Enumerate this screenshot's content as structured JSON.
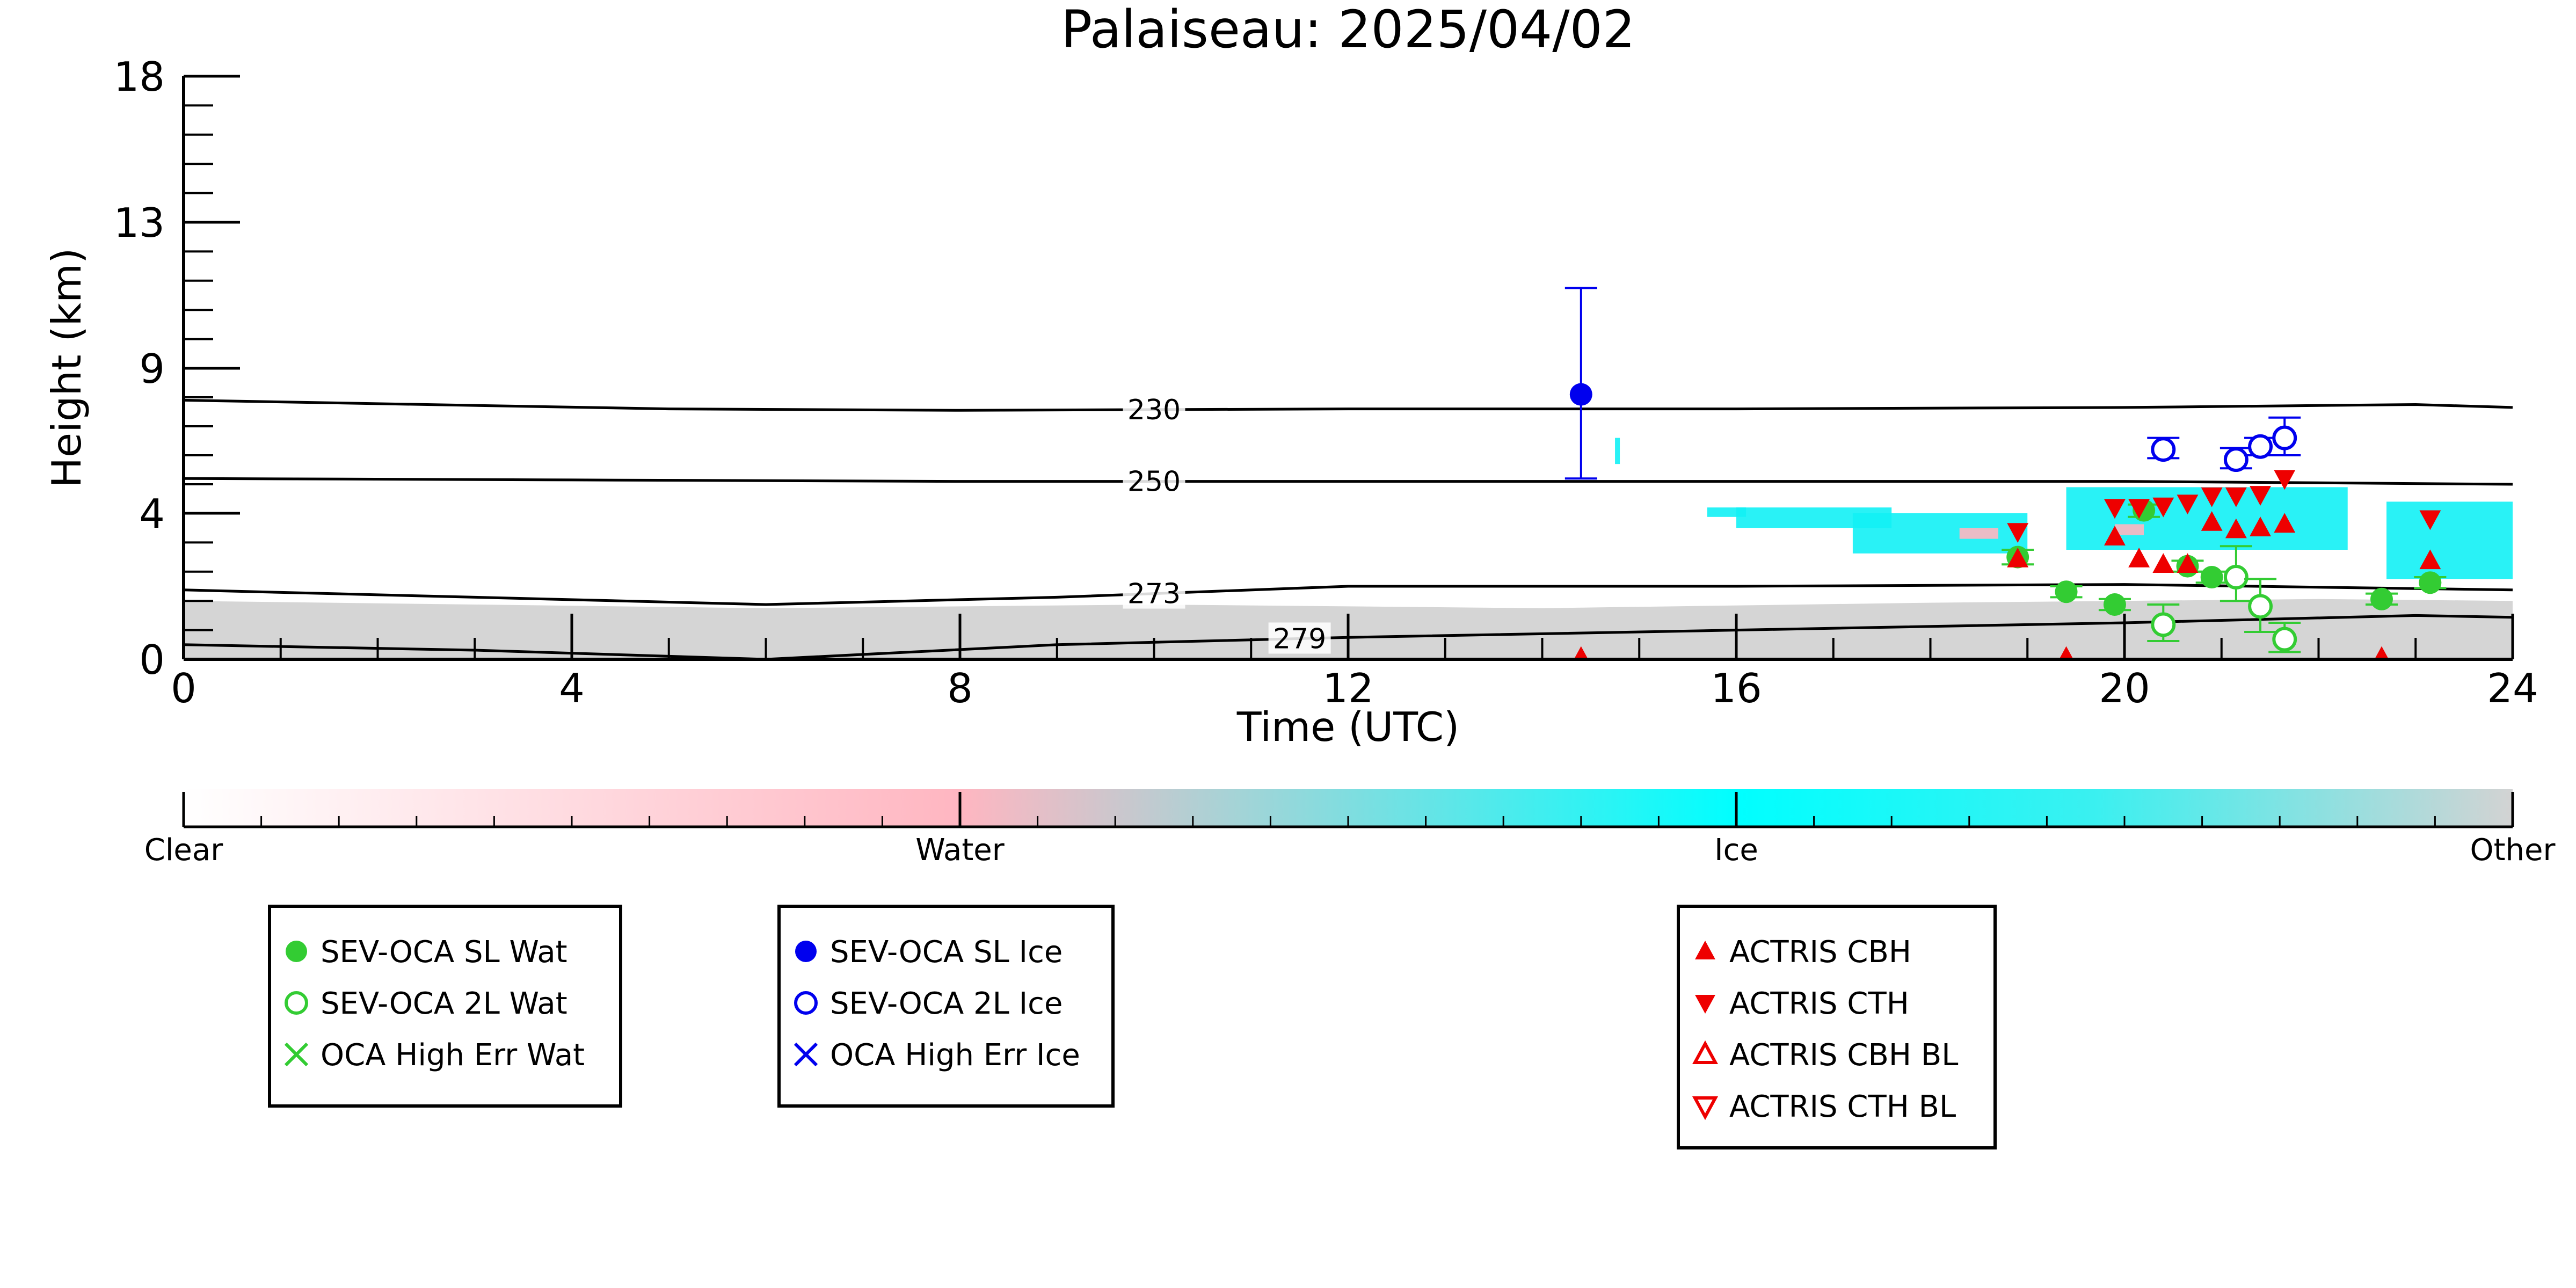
{
  "chart_data": {
    "type": "scatter",
    "title": "Palaiseau: 2025/04/02",
    "xlabel": "Time (UTC)",
    "ylabel": "Height (km)",
    "xlim": [
      0,
      24
    ],
    "ylim": [
      0,
      18
    ],
    "x_ticks": [
      0,
      4,
      8,
      12,
      16,
      20,
      24
    ],
    "x_tick_labels": [
      "0",
      "4",
      "8",
      "12",
      "16",
      "20",
      "24"
    ],
    "y_ticks": [
      0,
      4,
      9,
      13,
      18
    ],
    "y_tick_labels": [
      "0",
      "4",
      "9",
      "13",
      "18"
    ],
    "y_scale": "nonlinear (labelled ticks at 0, 4, 9, 13, 18 km)",
    "grid": false,
    "temperature_contours": [
      {
        "label": "230",
        "x": [
          0,
          5,
          8,
          12,
          16,
          20,
          23,
          24
        ],
        "y": [
          7.9,
          7.6,
          7.55,
          7.6,
          7.6,
          7.65,
          7.75,
          7.65
        ]
      },
      {
        "label": "250",
        "x": [
          0,
          4,
          8,
          12,
          16,
          20,
          24
        ],
        "y": [
          5.2,
          5.15,
          5.1,
          5.1,
          5.1,
          5.1,
          5.0
        ]
      },
      {
        "label": "273",
        "x": [
          0,
          3,
          6,
          9,
          12,
          16,
          20,
          24
        ],
        "y": [
          1.9,
          1.7,
          1.5,
          1.7,
          2.0,
          2.0,
          2.05,
          1.9
        ]
      },
      {
        "label": "279",
        "x": [
          0,
          3,
          6,
          9,
          12,
          16,
          20,
          23,
          24
        ],
        "y": [
          0.4,
          0.25,
          0.0,
          0.4,
          0.6,
          0.8,
          1.0,
          1.2,
          1.15
        ]
      }
    ],
    "background_layers": [
      {
        "category": "Other",
        "color": "#d3d3d3",
        "x": [
          0,
          3,
          6,
          10,
          14,
          18,
          22,
          24
        ],
        "top": [
          1.6,
          1.5,
          1.4,
          1.5,
          1.4,
          1.55,
          1.65,
          1.6
        ]
      },
      {
        "category": "Ice",
        "color": "#12f1f5",
        "patches": [
          {
            "x": [
              15.7,
              16.1
            ],
            "y": [
              3.9,
              4.2
            ]
          },
          {
            "x": [
              16.0,
              17.6
            ],
            "y": [
              3.6,
              4.2
            ]
          },
          {
            "x": [
              17.2,
              19.0
            ],
            "y": [
              2.9,
              4.0
            ]
          },
          {
            "x": [
              19.4,
              22.3
            ],
            "y": [
              3.0,
              4.9
            ]
          },
          {
            "x": [
              22.7,
              24.0
            ],
            "y": [
              2.2,
              4.4
            ]
          },
          {
            "x": [
              14.75,
              14.8
            ],
            "y": [
              5.7,
              6.6
            ]
          }
        ]
      },
      {
        "category": "Water",
        "color": "#ffb6c1",
        "patches": [
          {
            "x": [
              18.3,
              18.7
            ],
            "y": [
              3.3,
              3.6
            ]
          },
          {
            "x": [
              19.9,
              20.2
            ],
            "y": [
              3.4,
              3.7
            ]
          }
        ]
      }
    ],
    "colorbar": {
      "labels": [
        "Clear",
        "Water",
        "Ice",
        "Other"
      ],
      "stops": [
        {
          "pos": 0.0,
          "color": "#ffffff"
        },
        {
          "pos": 0.333,
          "color": "#ffb6c1"
        },
        {
          "pos": 0.45,
          "color": "#a6d3d6"
        },
        {
          "pos": 0.6667,
          "color": "#00ffff"
        },
        {
          "pos": 0.82,
          "color": "#3af0f0"
        },
        {
          "pos": 1.0,
          "color": "#d3d3d3"
        }
      ]
    },
    "series": [
      {
        "name": "SEV-OCA SL Wat",
        "marker": "filled-circle",
        "color": "#33cc33",
        "points": [
          {
            "x": 18.9,
            "y": 2.8,
            "err": [
              2.6,
              3.0
            ]
          },
          {
            "x": 19.4,
            "y": 1.85,
            "err": [
              1.7,
              2.0
            ]
          },
          {
            "x": 19.9,
            "y": 1.5,
            "err": [
              1.35,
              1.65
            ]
          },
          {
            "x": 20.2,
            "y": 4.1,
            "err": [
              3.9,
              4.3
            ]
          },
          {
            "x": 20.65,
            "y": 2.55,
            "err": [
              2.4,
              2.7
            ]
          },
          {
            "x": 20.9,
            "y": 2.25,
            "err": [
              2.1,
              2.4
            ]
          },
          {
            "x": 22.65,
            "y": 1.65,
            "err": [
              1.5,
              1.8
            ]
          },
          {
            "x": 23.15,
            "y": 2.1,
            "err": [
              1.95,
              2.25
            ]
          }
        ]
      },
      {
        "name": "SEV-OCA 2L Wat",
        "marker": "open-circle",
        "color": "#33cc33",
        "points": [
          {
            "x": 20.4,
            "y": 0.95,
            "err": [
              0.5,
              1.5
            ]
          },
          {
            "x": 21.15,
            "y": 2.25,
            "err": [
              1.6,
              3.1
            ]
          },
          {
            "x": 21.4,
            "y": 1.45,
            "err": [
              0.75,
              2.2
            ]
          },
          {
            "x": 21.65,
            "y": 0.55,
            "err": [
              0.2,
              1.0
            ]
          }
        ]
      },
      {
        "name": "OCA High Err Wat",
        "marker": "x",
        "color": "#33cc33",
        "points": []
      },
      {
        "name": "SEV-OCA SL Ice",
        "marker": "filled-circle",
        "color": "#0000ee",
        "points": [
          {
            "x": 14.4,
            "y": 8.1,
            "err": [
              5.2,
              11.2
            ]
          }
        ]
      },
      {
        "name": "SEV-OCA 2L Ice",
        "marker": "open-circle",
        "color": "#0000ee",
        "points": [
          {
            "x": 20.4,
            "y": 6.2,
            "err": [
              5.9,
              6.6
            ]
          },
          {
            "x": 21.15,
            "y": 5.85,
            "err": [
              5.55,
              6.25
            ]
          },
          {
            "x": 21.4,
            "y": 6.3,
            "err": [
              6.0,
              6.6
            ]
          },
          {
            "x": 21.65,
            "y": 6.6,
            "err": [
              6.0,
              7.3
            ]
          }
        ]
      },
      {
        "name": "OCA High Err Ice",
        "marker": "x",
        "color": "#0000ee",
        "points": []
      },
      {
        "name": "ACTRIS CBH",
        "marker": "triangle-up",
        "color": "#ee0000",
        "points": [
          {
            "x": 14.4,
            "y": 0.05
          },
          {
            "x": 19.4,
            "y": 0.05
          },
          {
            "x": 22.65,
            "y": 0.05
          },
          {
            "x": 18.9,
            "y": 2.75
          },
          {
            "x": 19.9,
            "y": 3.35
          },
          {
            "x": 20.15,
            "y": 2.75
          },
          {
            "x": 20.4,
            "y": 2.6
          },
          {
            "x": 20.65,
            "y": 2.6
          },
          {
            "x": 20.9,
            "y": 3.75
          },
          {
            "x": 21.15,
            "y": 3.55
          },
          {
            "x": 21.4,
            "y": 3.6
          },
          {
            "x": 21.65,
            "y": 3.7
          },
          {
            "x": 23.15,
            "y": 2.7
          }
        ]
      },
      {
        "name": "ACTRIS CTH",
        "marker": "triangle-down",
        "color": "#ee0000",
        "points": [
          {
            "x": 18.9,
            "y": 3.5
          },
          {
            "x": 19.9,
            "y": 4.2
          },
          {
            "x": 20.15,
            "y": 4.2
          },
          {
            "x": 20.4,
            "y": 4.25
          },
          {
            "x": 20.65,
            "y": 4.35
          },
          {
            "x": 20.9,
            "y": 4.6
          },
          {
            "x": 21.15,
            "y": 4.6
          },
          {
            "x": 21.4,
            "y": 4.65
          },
          {
            "x": 21.65,
            "y": 5.2
          },
          {
            "x": 23.15,
            "y": 3.85
          }
        ]
      },
      {
        "name": "ACTRIS CBH BL",
        "marker": "open-triangle-up",
        "color": "#ee0000",
        "points": []
      },
      {
        "name": "ACTRIS CTH BL",
        "marker": "open-triangle-down",
        "color": "#ee0000",
        "points": []
      }
    ],
    "legend_groups": [
      [
        "SEV-OCA SL Wat",
        "SEV-OCA 2L Wat",
        "OCA High Err Wat"
      ],
      [
        "SEV-OCA SL Ice",
        "SEV-OCA 2L Ice",
        "OCA High Err Ice"
      ],
      [
        "ACTRIS CBH",
        "ACTRIS CTH",
        "ACTRIS CBH BL",
        "ACTRIS CTH BL"
      ]
    ],
    "legend_placement": "below plot"
  }
}
